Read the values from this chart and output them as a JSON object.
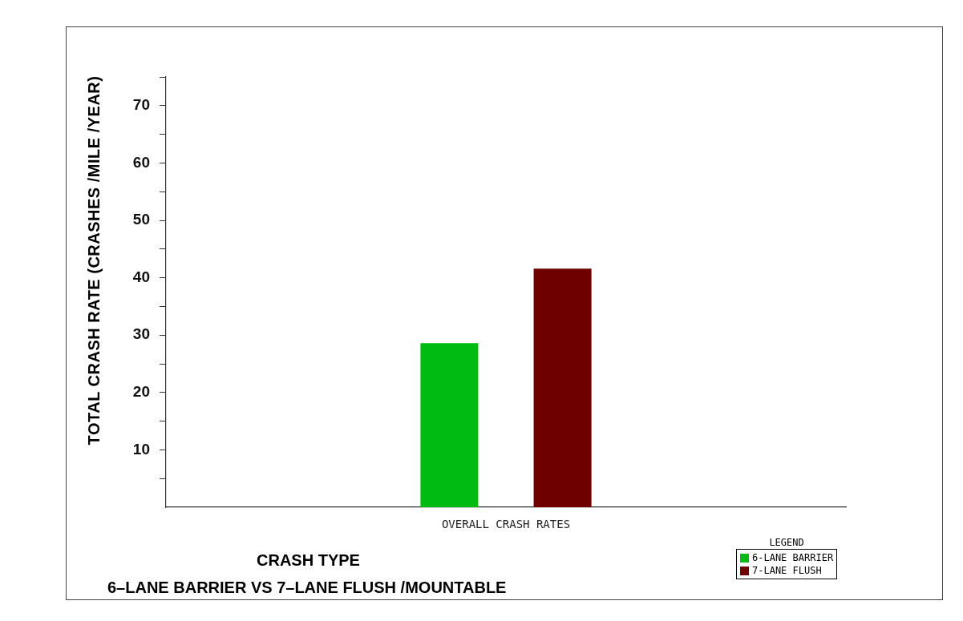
{
  "chart_data": {
    "type": "bar",
    "title": "6–LANE BARRIER VS 7–LANE FLUSH /MOUNTABLE",
    "xlabel": "CRASH TYPE",
    "ylabel": "TOTAL CRASH RATE (CRASHES /MILE /YEAR)",
    "legend_title": "LEGEND",
    "legend": "bottom right",
    "categories": [
      "OVERALL CRASH RATES"
    ],
    "series": [
      {
        "name": "6-LANE BARRIER",
        "color": "#00bb11",
        "values": [
          28.6
        ]
      },
      {
        "name": "7-LANE FLUSH",
        "color": "#6e0000",
        "values": [
          41.6
        ]
      }
    ],
    "ylim": [
      0,
      75
    ],
    "yticks": [
      {
        "value": 5,
        "label": null
      },
      10,
      {
        "value": 15,
        "label": null
      },
      20,
      {
        "value": 25,
        "label": null
      },
      30,
      {
        "value": 35,
        "label": null
      },
      40,
      {
        "value": 45,
        "label": null
      },
      50,
      {
        "value": 55,
        "label": null
      },
      60,
      {
        "value": 65,
        "label": null
      },
      70,
      {
        "value": 75,
        "label": null
      }
    ],
    "grid": false
  }
}
